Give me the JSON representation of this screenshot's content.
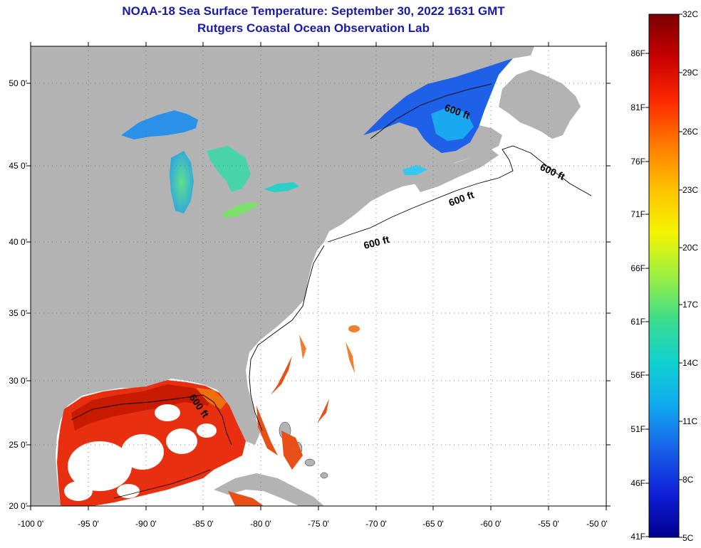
{
  "title": "NOAA-18 Sea Surface Temperature:  September 30, 2022 1631 GMT",
  "subtitle": "Rutgers Coastal Ocean Observation Lab",
  "axes": {
    "lon_labels": [
      "-100 0'",
      "-95 0'",
      "-90 0'",
      "-85 0'",
      "-80 0'",
      "-75 0'",
      "-70 0'",
      "-65 0'",
      "-60 0'",
      "-55 0'",
      "-50 0'"
    ],
    "lat_labels": [
      "50 0'",
      "45 0'",
      "40 0'",
      "35 0'",
      "30 0'",
      "25 0'",
      "20 0'"
    ]
  },
  "contour_labels": [
    "600 ft",
    "600 ft",
    "600 ft",
    "600 ft",
    "600 ft"
  ],
  "colorbar": {
    "fahrenheit_labels": [
      "86F",
      "81F",
      "76F",
      "71F",
      "66F",
      "61F",
      "56F",
      "51F",
      "46F",
      "41F"
    ],
    "celsius_labels": [
      "32C",
      "29C",
      "26C",
      "23C",
      "20C",
      "17C",
      "14C",
      "11C",
      "8C",
      "5C"
    ],
    "colors": [
      "#7a0000",
      "#c80000",
      "#ff2a00",
      "#ff7a00",
      "#ffc000",
      "#f4f400",
      "#9cf040",
      "#3cdc8c",
      "#10d0d0",
      "#10a8f0",
      "#1860e8",
      "#1020d8",
      "#000090"
    ]
  },
  "colors": {
    "land": "#b3b3b3",
    "title": "#1a1aa8",
    "water_nodata": "#ffffff"
  }
}
